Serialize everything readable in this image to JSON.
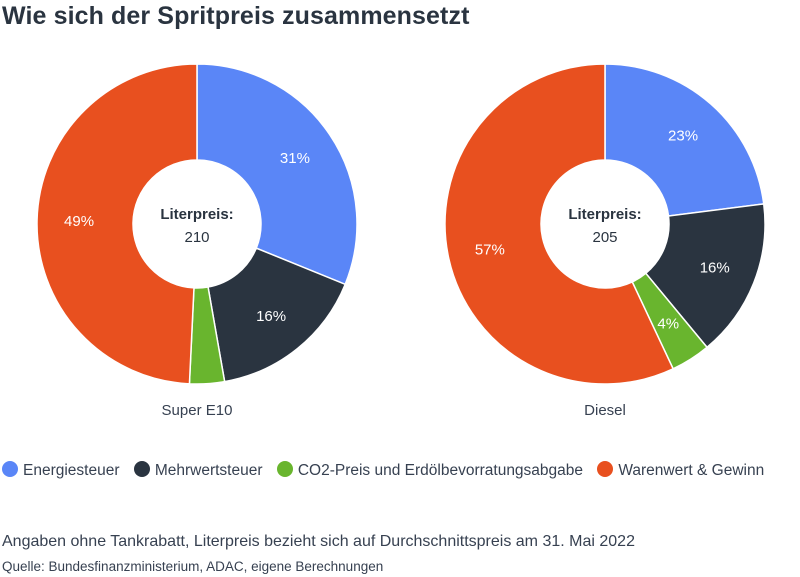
{
  "title": "Wie sich der Spritpreis zusammensetzt",
  "colors": {
    "energiesteuer": "#5a86f7",
    "mehrwertsteuer": "#2a3440",
    "co2": "#69b52e",
    "warenwert": "#e8501f"
  },
  "chart_data": [
    {
      "type": "pie",
      "variant": "donut",
      "name": "Super E10",
      "center_label": "Literpreis:",
      "center_value": "210",
      "slices": [
        {
          "label": "Energiesteuer",
          "value": 31,
          "display": "31%",
          "color": "#5a86f7"
        },
        {
          "label": "Mehrwertsteuer",
          "value": 16,
          "display": "16%",
          "color": "#2a3440"
        },
        {
          "label": "CO2-Preis und Erdölbevorratungsabgabe",
          "value": 3.5,
          "display": "",
          "color": "#69b52e"
        },
        {
          "label": "Warenwert & Gewinn",
          "value": 49,
          "display": "49%",
          "color": "#e8501f"
        }
      ]
    },
    {
      "type": "pie",
      "variant": "donut",
      "name": "Diesel",
      "center_label": "Literpreis:",
      "center_value": "205",
      "slices": [
        {
          "label": "Energiesteuer",
          "value": 23,
          "display": "23%",
          "color": "#5a86f7"
        },
        {
          "label": "Mehrwertsteuer",
          "value": 16,
          "display": "16%",
          "color": "#2a3440"
        },
        {
          "label": "CO2-Preis und Erdölbevorratungsabgabe",
          "value": 4,
          "display": "4%",
          "color": "#69b52e"
        },
        {
          "label": "Warenwert & Gewinn",
          "value": 57,
          "display": "57%",
          "color": "#e8501f"
        }
      ]
    }
  ],
  "legend": [
    {
      "label": "Energiesteuer",
      "color": "#5a86f7"
    },
    {
      "label": "Mehrwertsteuer",
      "color": "#2a3440"
    },
    {
      "label": "CO2-Preis und Erdölbevorratungsabgabe",
      "color": "#69b52e"
    },
    {
      "label": "Warenwert & Gewinn",
      "color": "#e8501f"
    }
  ],
  "note": "Angaben ohne Tankrabatt, Literpreis bezieht sich auf Durchschnittspreis am 31. Mai 2022",
  "source": "Quelle: Bundesfinanzministerium, ADAC, eigene Berechnungen"
}
